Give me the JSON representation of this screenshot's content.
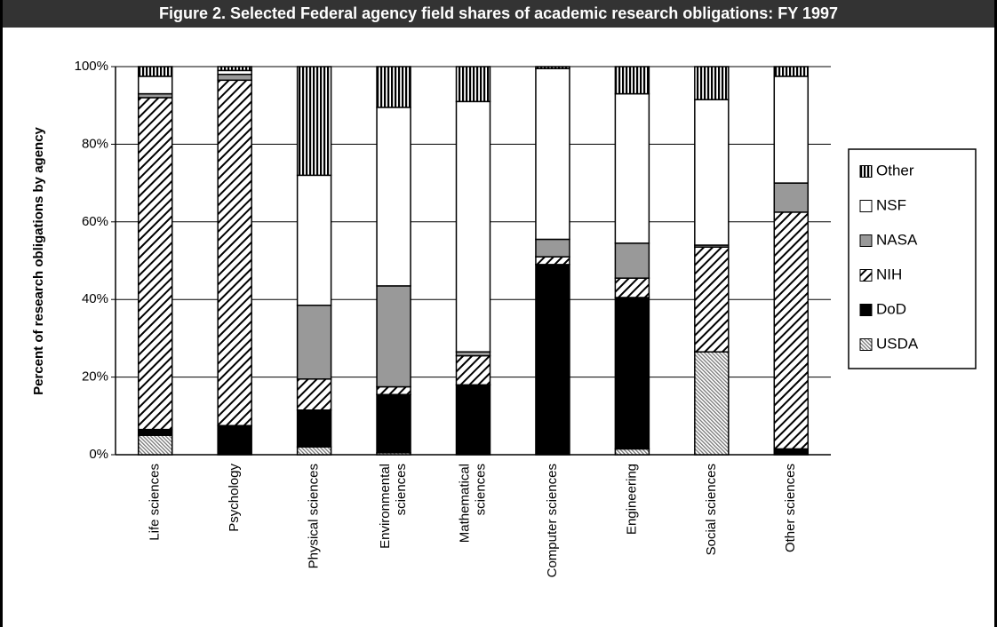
{
  "chart_data": {
    "type": "stacked_bar",
    "title": "Figure 2.  Selected Federal agency field shares of academic research obligations: FY 1997",
    "y_label": "Percent of research obligations by agency",
    "categories": [
      "Life sciences",
      "Psychology",
      "Physical sciences",
      "Environmental sciences",
      "Mathematical sciences",
      "Computer sciences",
      "Engineering",
      "Social sciences",
      "Other sciences"
    ],
    "series": [
      {
        "name": "USDA",
        "color": "#777777",
        "pattern": "fine-diagonal",
        "values": [
          5,
          0,
          2,
          0.5,
          0,
          0,
          1.5,
          26.5,
          0
        ]
      },
      {
        "name": "DoD",
        "color": "#000000",
        "pattern": "solid",
        "values": [
          1.5,
          7.5,
          9.5,
          15,
          18,
          49,
          39,
          0,
          1.5
        ]
      },
      {
        "name": "NIH",
        "color": "#000000",
        "pattern": "diagonal",
        "values": [
          85.5,
          89,
          8,
          2,
          7.5,
          2,
          5,
          27,
          61
        ]
      },
      {
        "name": "NASA",
        "color": "#999999",
        "pattern": "solid",
        "values": [
          1,
          1.5,
          19,
          26,
          1,
          4.5,
          9,
          0.5,
          7.5
        ]
      },
      {
        "name": "NSF",
        "color": "#ffffff",
        "pattern": "solid",
        "values": [
          4.5,
          1,
          33.5,
          46,
          64.5,
          44,
          38.5,
          37.5,
          27.5
        ]
      },
      {
        "name": "Other",
        "color": "#000000",
        "pattern": "vertical-stripes",
        "values": [
          2.5,
          1,
          28,
          10.5,
          9,
          0.5,
          7,
          8.5,
          2.5
        ]
      }
    ],
    "ylim": [
      0,
      100
    ],
    "yticks": [
      {
        "value": 0,
        "label": "0%"
      },
      {
        "value": 20,
        "label": "20%"
      },
      {
        "value": 40,
        "label": "40%"
      },
      {
        "value": 60,
        "label": "60%"
      },
      {
        "value": 80,
        "label": "80%"
      },
      {
        "value": 100,
        "label": "100%"
      }
    ],
    "grid": true,
    "legend": "right"
  }
}
